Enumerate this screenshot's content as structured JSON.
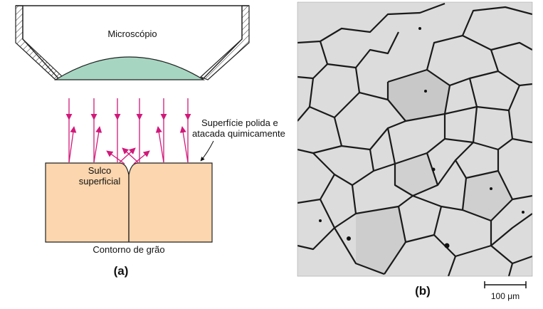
{
  "panel_a": {
    "microscope_label": "Microscópio",
    "surface_label_line1": "Superfície polida e",
    "surface_label_line2": "atacada quimicamente",
    "groove_label_line1": "Sulco",
    "groove_label_line2": "superficial",
    "boundary_label": "Contorno de grão",
    "panel_label": "(a)"
  },
  "panel_b": {
    "panel_label": "(b)",
    "scale_bar_label": "100 μm"
  },
  "colors": {
    "lens": "#a6d6c2",
    "specimen": "#fbd6ae",
    "rays": "#d1197a",
    "micrograph_bg": "#dcdcdc",
    "grain_boundary": "#1a1a1a"
  }
}
